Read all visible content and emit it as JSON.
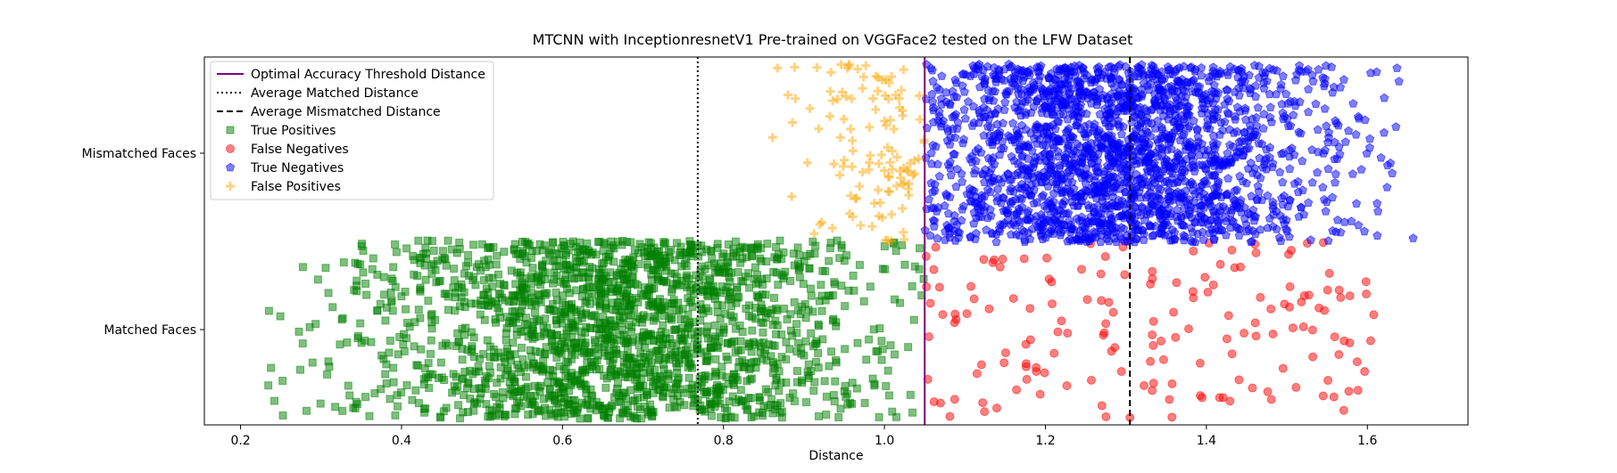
{
  "chart_data": {
    "type": "scatter",
    "title": "MTCNN with InceptionresnetV1 Pre-trained on VGGFace2 tested on the LFW Dataset",
    "xlabel": "Distance",
    "ylabel": "",
    "xlim": [
      0.155,
      1.725
    ],
    "xticks": [
      "0.2",
      "0.4",
      "0.6",
      "0.8",
      "1.0",
      "1.2",
      "1.4",
      "1.6"
    ],
    "categories": [
      "Matched Faces",
      "Mismatched Faces"
    ],
    "grid": false,
    "legend_position": "upper left",
    "reference_lines": [
      {
        "name": "Optimal Accuracy Threshold Distance",
        "x": 1.05,
        "style": "solid",
        "color": "#800080"
      },
      {
        "name": "Average Matched Distance",
        "x": 0.768,
        "style": "dotted",
        "color": "#000000"
      },
      {
        "name": "Average Mismatched Distance",
        "x": 1.305,
        "style": "dashed",
        "color": "#000000"
      }
    ],
    "series": [
      {
        "name": "True Positives",
        "category": "Matched Faces",
        "marker": "square",
        "color": "#008000",
        "count": 1950,
        "x_range": [
          0.228,
          1.05
        ],
        "x_center": 0.68,
        "x_spread": 0.16,
        "jitter": 0.42
      },
      {
        "name": "False Negatives",
        "category": "Matched Faces",
        "marker": "circle",
        "color": "#ff0000",
        "count": 165,
        "x_range": [
          1.05,
          1.61
        ],
        "jitter": 0.42
      },
      {
        "name": "True Negatives",
        "category": "Mismatched Faces",
        "marker": "pentagon",
        "color": "#0000ff",
        "count": 2100,
        "x_range": [
          1.05,
          1.66
        ],
        "x_center": 1.28,
        "x_spread": 0.14,
        "jitter": 0.42
      },
      {
        "name": "False Positives",
        "category": "Mismatched Faces",
        "marker": "plus",
        "color": "#ffa500",
        "count": 120,
        "x_range": [
          0.83,
          1.05
        ],
        "x_center": 1.0,
        "x_spread": 0.05,
        "jitter": 0.42
      }
    ]
  }
}
